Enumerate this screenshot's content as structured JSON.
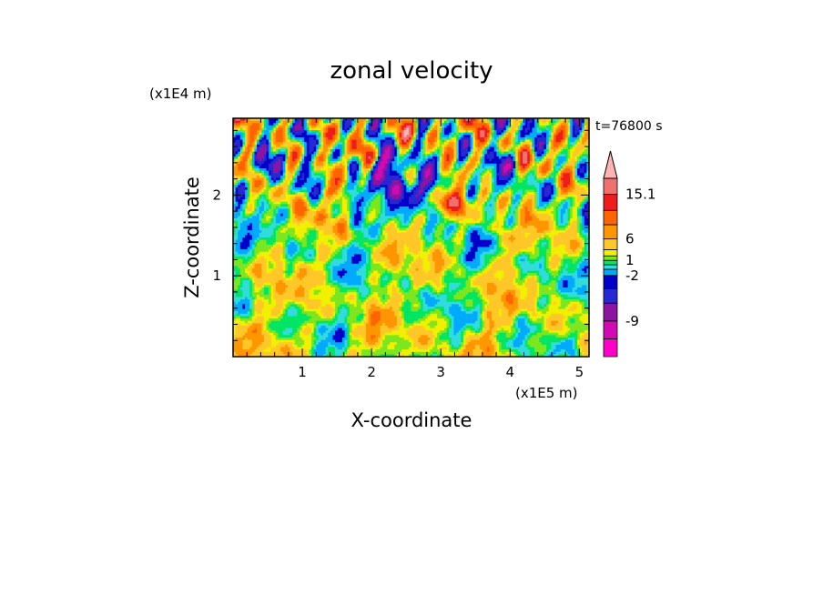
{
  "chart_data": {
    "type": "heatmap",
    "title": "zonal velocity",
    "xlabel": "X-coordinate",
    "ylabel": "Z-coordinate",
    "x_unit": "(x1E5 m)",
    "y_unit": "(x1E4 m)",
    "time_label": "t=76800 s",
    "xlim": [
      0,
      5.14
    ],
    "ylim": [
      0,
      2.95
    ],
    "x_ticks": [
      1,
      2,
      3,
      4,
      5
    ],
    "y_ticks": [
      1,
      2
    ],
    "x_minor_step": 0.2,
    "y_minor_step": 0.2,
    "colorbar": {
      "levels": [
        -15.1,
        -12,
        -9,
        -6,
        -4,
        -2,
        -1,
        0,
        1,
        2,
        4,
        6,
        9,
        12,
        15.1
      ],
      "colors": [
        "#ff00c8",
        "#d20ab4",
        "#8c14a0",
        "#2828d2",
        "#0000c8",
        "#00aaff",
        "#32dcdc",
        "#00e664",
        "#7ee61e",
        "#f0f000",
        "#ffc828",
        "#ff9600",
        "#ff6400",
        "#ee1c1c",
        "#f07070",
        "#ffb4b4"
      ],
      "extend_max": true,
      "labels": [
        {
          "value": -9,
          "text": "-9"
        },
        {
          "value": -2,
          "text": "-2"
        },
        {
          "value": 1,
          "text": "1"
        },
        {
          "value": 6,
          "text": "6"
        },
        {
          "value": 15.1,
          "text": "15.1"
        }
      ]
    }
  }
}
